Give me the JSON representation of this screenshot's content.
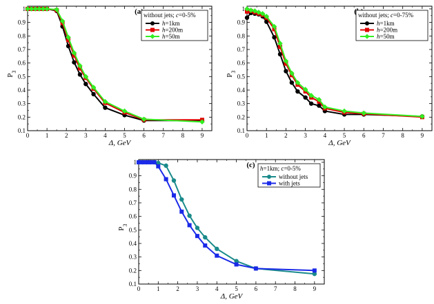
{
  "chart_data": [
    {
      "panel": "(a)",
      "type": "line",
      "legend_title": "without jets; c=0-5%",
      "legend_position": "top-right",
      "xlabel": "Δ, GeV",
      "ylabel": "P3",
      "xlim": [
        0,
        9.5
      ],
      "ylim": [
        0.1,
        1.02
      ],
      "xticks": [
        0,
        1,
        2,
        3,
        4,
        5,
        6,
        7,
        8,
        9
      ],
      "yticks": [
        0.1,
        0.2,
        0.3,
        0.4,
        0.5,
        0.6,
        0.7,
        0.8,
        0.9,
        1
      ],
      "series": [
        {
          "name": "h=1km",
          "color": "#000000",
          "x": [
            0,
            0.2,
            0.4,
            0.6,
            0.8,
            1.0,
            1.5,
            1.8,
            2.1,
            2.4,
            2.7,
            3.0,
            3.4,
            4.0,
            5.0,
            6.0,
            9.0
          ],
          "y": [
            1,
            1,
            1,
            1,
            1,
            1,
            0.985,
            0.87,
            0.725,
            0.605,
            0.515,
            0.445,
            0.37,
            0.27,
            0.215,
            0.175,
            0.175
          ]
        },
        {
          "name": "h=200m",
          "color": "#e00000",
          "x": [
            0,
            0.2,
            0.4,
            0.6,
            0.8,
            1.0,
            1.5,
            1.8,
            2.1,
            2.4,
            2.7,
            3.0,
            3.4,
            4.0,
            5.0,
            6.0,
            9.0
          ],
          "y": [
            1,
            1,
            1,
            1,
            1,
            1,
            0.99,
            0.895,
            0.77,
            0.655,
            0.56,
            0.49,
            0.41,
            0.305,
            0.235,
            0.18,
            0.18
          ]
        },
        {
          "name": "h=50m",
          "color": "#33ee22",
          "x": [
            0,
            0.2,
            0.4,
            0.6,
            0.8,
            1.0,
            1.5,
            1.8,
            2.1,
            2.4,
            2.7,
            3.0,
            3.4,
            4.0,
            5.0,
            6.0,
            9.0
          ],
          "y": [
            1,
            1,
            1,
            1,
            1,
            1,
            0.995,
            0.91,
            0.79,
            0.675,
            0.58,
            0.5,
            0.42,
            0.315,
            0.245,
            0.185,
            0.165
          ]
        }
      ]
    },
    {
      "panel": "(b)",
      "type": "line",
      "legend_title": "without jets; c=0-75%",
      "legend_position": "top-right",
      "xlabel": "Δ, GeV",
      "ylabel": "P3",
      "xlim": [
        0,
        9.5
      ],
      "ylim": [
        0.1,
        1.02
      ],
      "xticks": [
        0,
        1,
        2,
        3,
        4,
        5,
        6,
        7,
        8,
        9
      ],
      "yticks": [
        0.1,
        0.2,
        0.3,
        0.4,
        0.5,
        0.6,
        0.7,
        0.8,
        0.9,
        1
      ],
      "series": [
        {
          "name": "h=1km",
          "color": "#000000",
          "x": [
            0,
            0.2,
            0.4,
            0.6,
            0.8,
            1.0,
            1.4,
            1.7,
            2.0,
            2.3,
            2.6,
            3.0,
            3.3,
            3.7,
            4.0,
            5.0,
            6.0,
            9.0
          ],
          "y": [
            0.935,
            0.97,
            0.965,
            0.96,
            0.945,
            0.905,
            0.79,
            0.665,
            0.54,
            0.455,
            0.39,
            0.345,
            0.3,
            0.285,
            0.245,
            0.22,
            0.22,
            0.205
          ]
        },
        {
          "name": "h=200m",
          "color": "#e00000",
          "x": [
            0,
            0.2,
            0.4,
            0.6,
            0.8,
            1.0,
            1.4,
            1.7,
            2.0,
            2.3,
            2.6,
            3.0,
            3.3,
            3.7,
            4.0,
            5.0,
            6.0,
            9.0
          ],
          "y": [
            0.98,
            0.985,
            0.975,
            0.965,
            0.955,
            0.935,
            0.85,
            0.72,
            0.595,
            0.51,
            0.44,
            0.39,
            0.345,
            0.315,
            0.265,
            0.235,
            0.225,
            0.2
          ]
        },
        {
          "name": "h=50m",
          "color": "#33ee22",
          "x": [
            0,
            0.2,
            0.4,
            0.6,
            0.8,
            1.0,
            1.4,
            1.7,
            2.0,
            2.3,
            2.6,
            3.0,
            3.3,
            3.7,
            4.0,
            5.0,
            6.0,
            9.0
          ],
          "y": [
            1.0,
            0.99,
            0.985,
            0.975,
            0.965,
            0.945,
            0.87,
            0.745,
            0.615,
            0.525,
            0.455,
            0.405,
            0.36,
            0.33,
            0.275,
            0.245,
            0.23,
            0.205
          ]
        }
      ]
    },
    {
      "panel": "(c)",
      "type": "line",
      "legend_title": "h=1km; c=0-5%",
      "legend_position": "top-right",
      "xlabel": "Δ, GeV",
      "ylabel": "P3",
      "xlim": [
        0,
        9.5
      ],
      "ylim": [
        0.1,
        1.02
      ],
      "xticks": [
        0,
        1,
        2,
        3,
        4,
        5,
        6,
        7,
        8,
        9
      ],
      "yticks": [
        0.1,
        0.2,
        0.3,
        0.4,
        0.5,
        0.6,
        0.7,
        0.8,
        0.9,
        1
      ],
      "series": [
        {
          "name": "without jets",
          "color": "#1a8a8a",
          "marker": "circle",
          "x": [
            0,
            0.2,
            0.4,
            0.6,
            0.8,
            1.0,
            1.4,
            1.8,
            2.2,
            2.6,
            3.0,
            3.4,
            4.0,
            5.0,
            6.0,
            9.0
          ],
          "y": [
            1,
            1,
            1,
            1,
            1,
            0.995,
            0.975,
            0.865,
            0.725,
            0.605,
            0.515,
            0.445,
            0.36,
            0.27,
            0.215,
            0.175
          ]
        },
        {
          "name": "with jets",
          "color": "#1a2ae8",
          "marker": "square",
          "x": [
            0,
            0.2,
            0.4,
            0.6,
            0.8,
            1.0,
            1.4,
            1.8,
            2.2,
            2.6,
            3.0,
            3.4,
            4.0,
            5.0,
            6.0,
            9.0
          ],
          "y": [
            1,
            1,
            1,
            1,
            1,
            0.97,
            0.875,
            0.755,
            0.635,
            0.535,
            0.455,
            0.385,
            0.31,
            0.245,
            0.215,
            0.2
          ]
        }
      ]
    }
  ]
}
